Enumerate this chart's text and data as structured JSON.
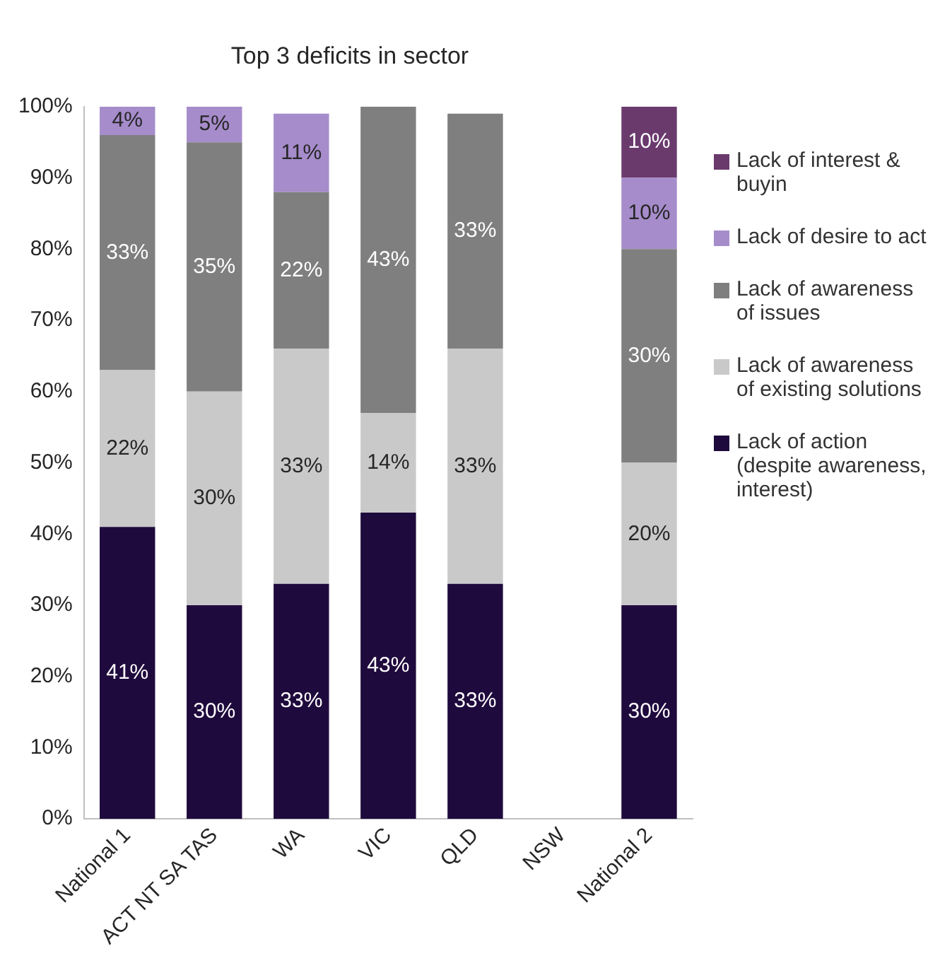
{
  "chart_data": {
    "type": "bar",
    "title": "Top 3 deficits in sector",
    "stacked": true,
    "legend": "right",
    "grid": false,
    "categories": [
      "National 1",
      "ACT NT SA TAS",
      "WA",
      "VIC",
      "QLD",
      "NSW",
      "National 2"
    ],
    "ylim": [
      0,
      100
    ],
    "yticks": [
      {
        "value": 0,
        "label": "0%"
      },
      {
        "value": 10,
        "label": "10%"
      },
      {
        "value": 20,
        "label": "20%"
      },
      {
        "value": 30,
        "label": "30%"
      },
      {
        "value": 40,
        "label": "40%"
      },
      {
        "value": 50,
        "label": "50%"
      },
      {
        "value": 60,
        "label": "60%"
      },
      {
        "value": 70,
        "label": "70%"
      },
      {
        "value": 80,
        "label": "80%"
      },
      {
        "value": 90,
        "label": "90%"
      },
      {
        "value": 100,
        "label": "100%"
      }
    ],
    "series": [
      {
        "name": "Lack of action (despite awareness, interest)",
        "color": "#1f0a3d",
        "values": [
          41,
          30,
          33,
          43,
          33,
          null,
          30
        ],
        "value_labels": [
          "41%",
          "30%",
          "33%",
          "43%",
          "33%",
          null,
          "30%"
        ]
      },
      {
        "name": "Lack of awareness of existing solutions",
        "color": "#c9c9c9",
        "values": [
          22,
          30,
          33,
          14,
          33,
          null,
          20
        ],
        "value_labels": [
          "22%",
          "30%",
          "33%",
          "14%",
          "33%",
          null,
          "20%"
        ]
      },
      {
        "name": "Lack of awareness of issues",
        "color": "#7f7f7f",
        "values": [
          33,
          35,
          22,
          43,
          33,
          null,
          30
        ],
        "value_labels": [
          "33%",
          "35%",
          "22%",
          "43%",
          "33%",
          null,
          "30%"
        ]
      },
      {
        "name": "Lack of desire to act",
        "color": "#a68ccb",
        "values": [
          4,
          5,
          11,
          null,
          null,
          null,
          10
        ],
        "value_labels": [
          "4%",
          "5%",
          "11%",
          null,
          null,
          null,
          "10%"
        ]
      },
      {
        "name": "Lack of interest & buyin",
        "color": "#6a3a6d",
        "values": [
          null,
          null,
          null,
          null,
          null,
          null,
          10
        ],
        "value_labels": [
          null,
          null,
          null,
          null,
          null,
          null,
          "10%"
        ]
      }
    ]
  }
}
